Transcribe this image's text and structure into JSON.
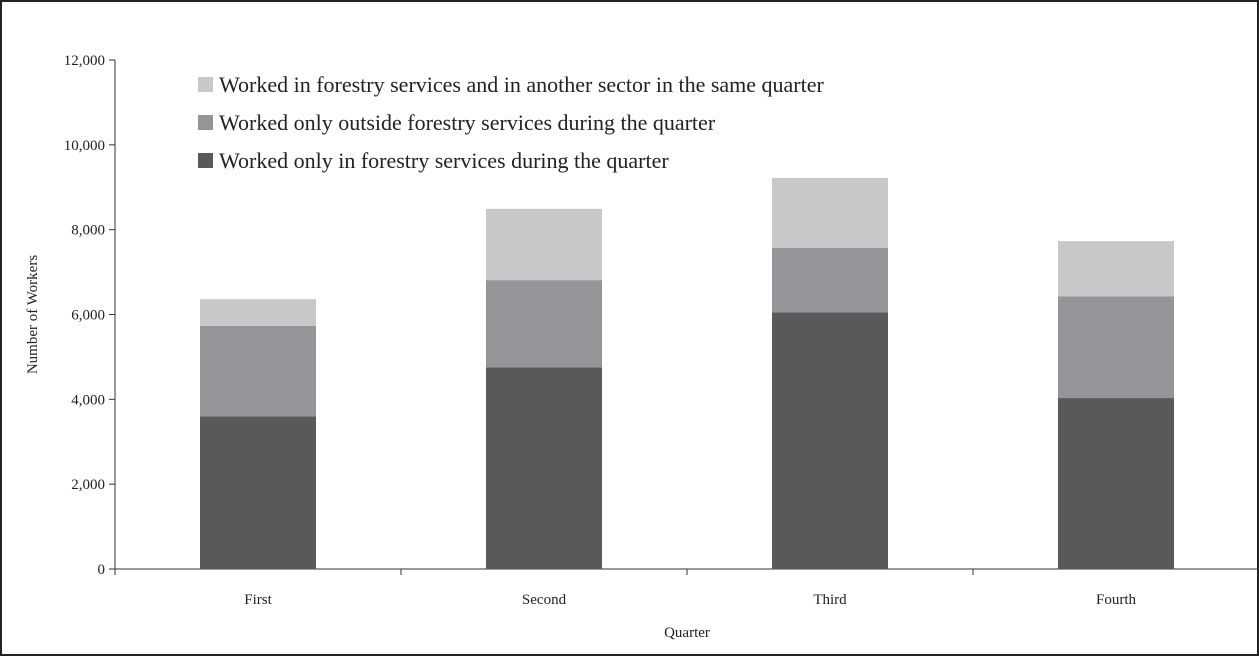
{
  "chart_data": {
    "type": "bar",
    "stacked": true,
    "categories": [
      "First",
      "Second",
      "Third",
      "Fourth"
    ],
    "series": [
      {
        "name": "Worked only in forestry services during the quarter",
        "values": [
          3600,
          4750,
          6050,
          4030
        ],
        "color": "#58595b"
      },
      {
        "name": "Worked only outside forestry services during the quarter",
        "values": [
          2130,
          2060,
          1520,
          2400
        ],
        "color": "#939598"
      },
      {
        "name": "Worked in forestry services and in another sector in the same quarter",
        "values": [
          630,
          1680,
          1650,
          1300
        ],
        "color": "#c7c8ca"
      }
    ],
    "xlabel": "Quarter",
    "ylabel": "Number of Workers",
    "ylim": [
      0,
      12000
    ],
    "yticks": [
      0,
      2000,
      4000,
      6000,
      8000,
      10000,
      12000
    ],
    "ytick_labels": [
      "0",
      "2,000",
      "4,000",
      "6,000",
      "8,000",
      "10,000",
      "12,000"
    ],
    "grid": false,
    "legend_position": "top-left",
    "legend_order": [
      2,
      1,
      0
    ]
  }
}
